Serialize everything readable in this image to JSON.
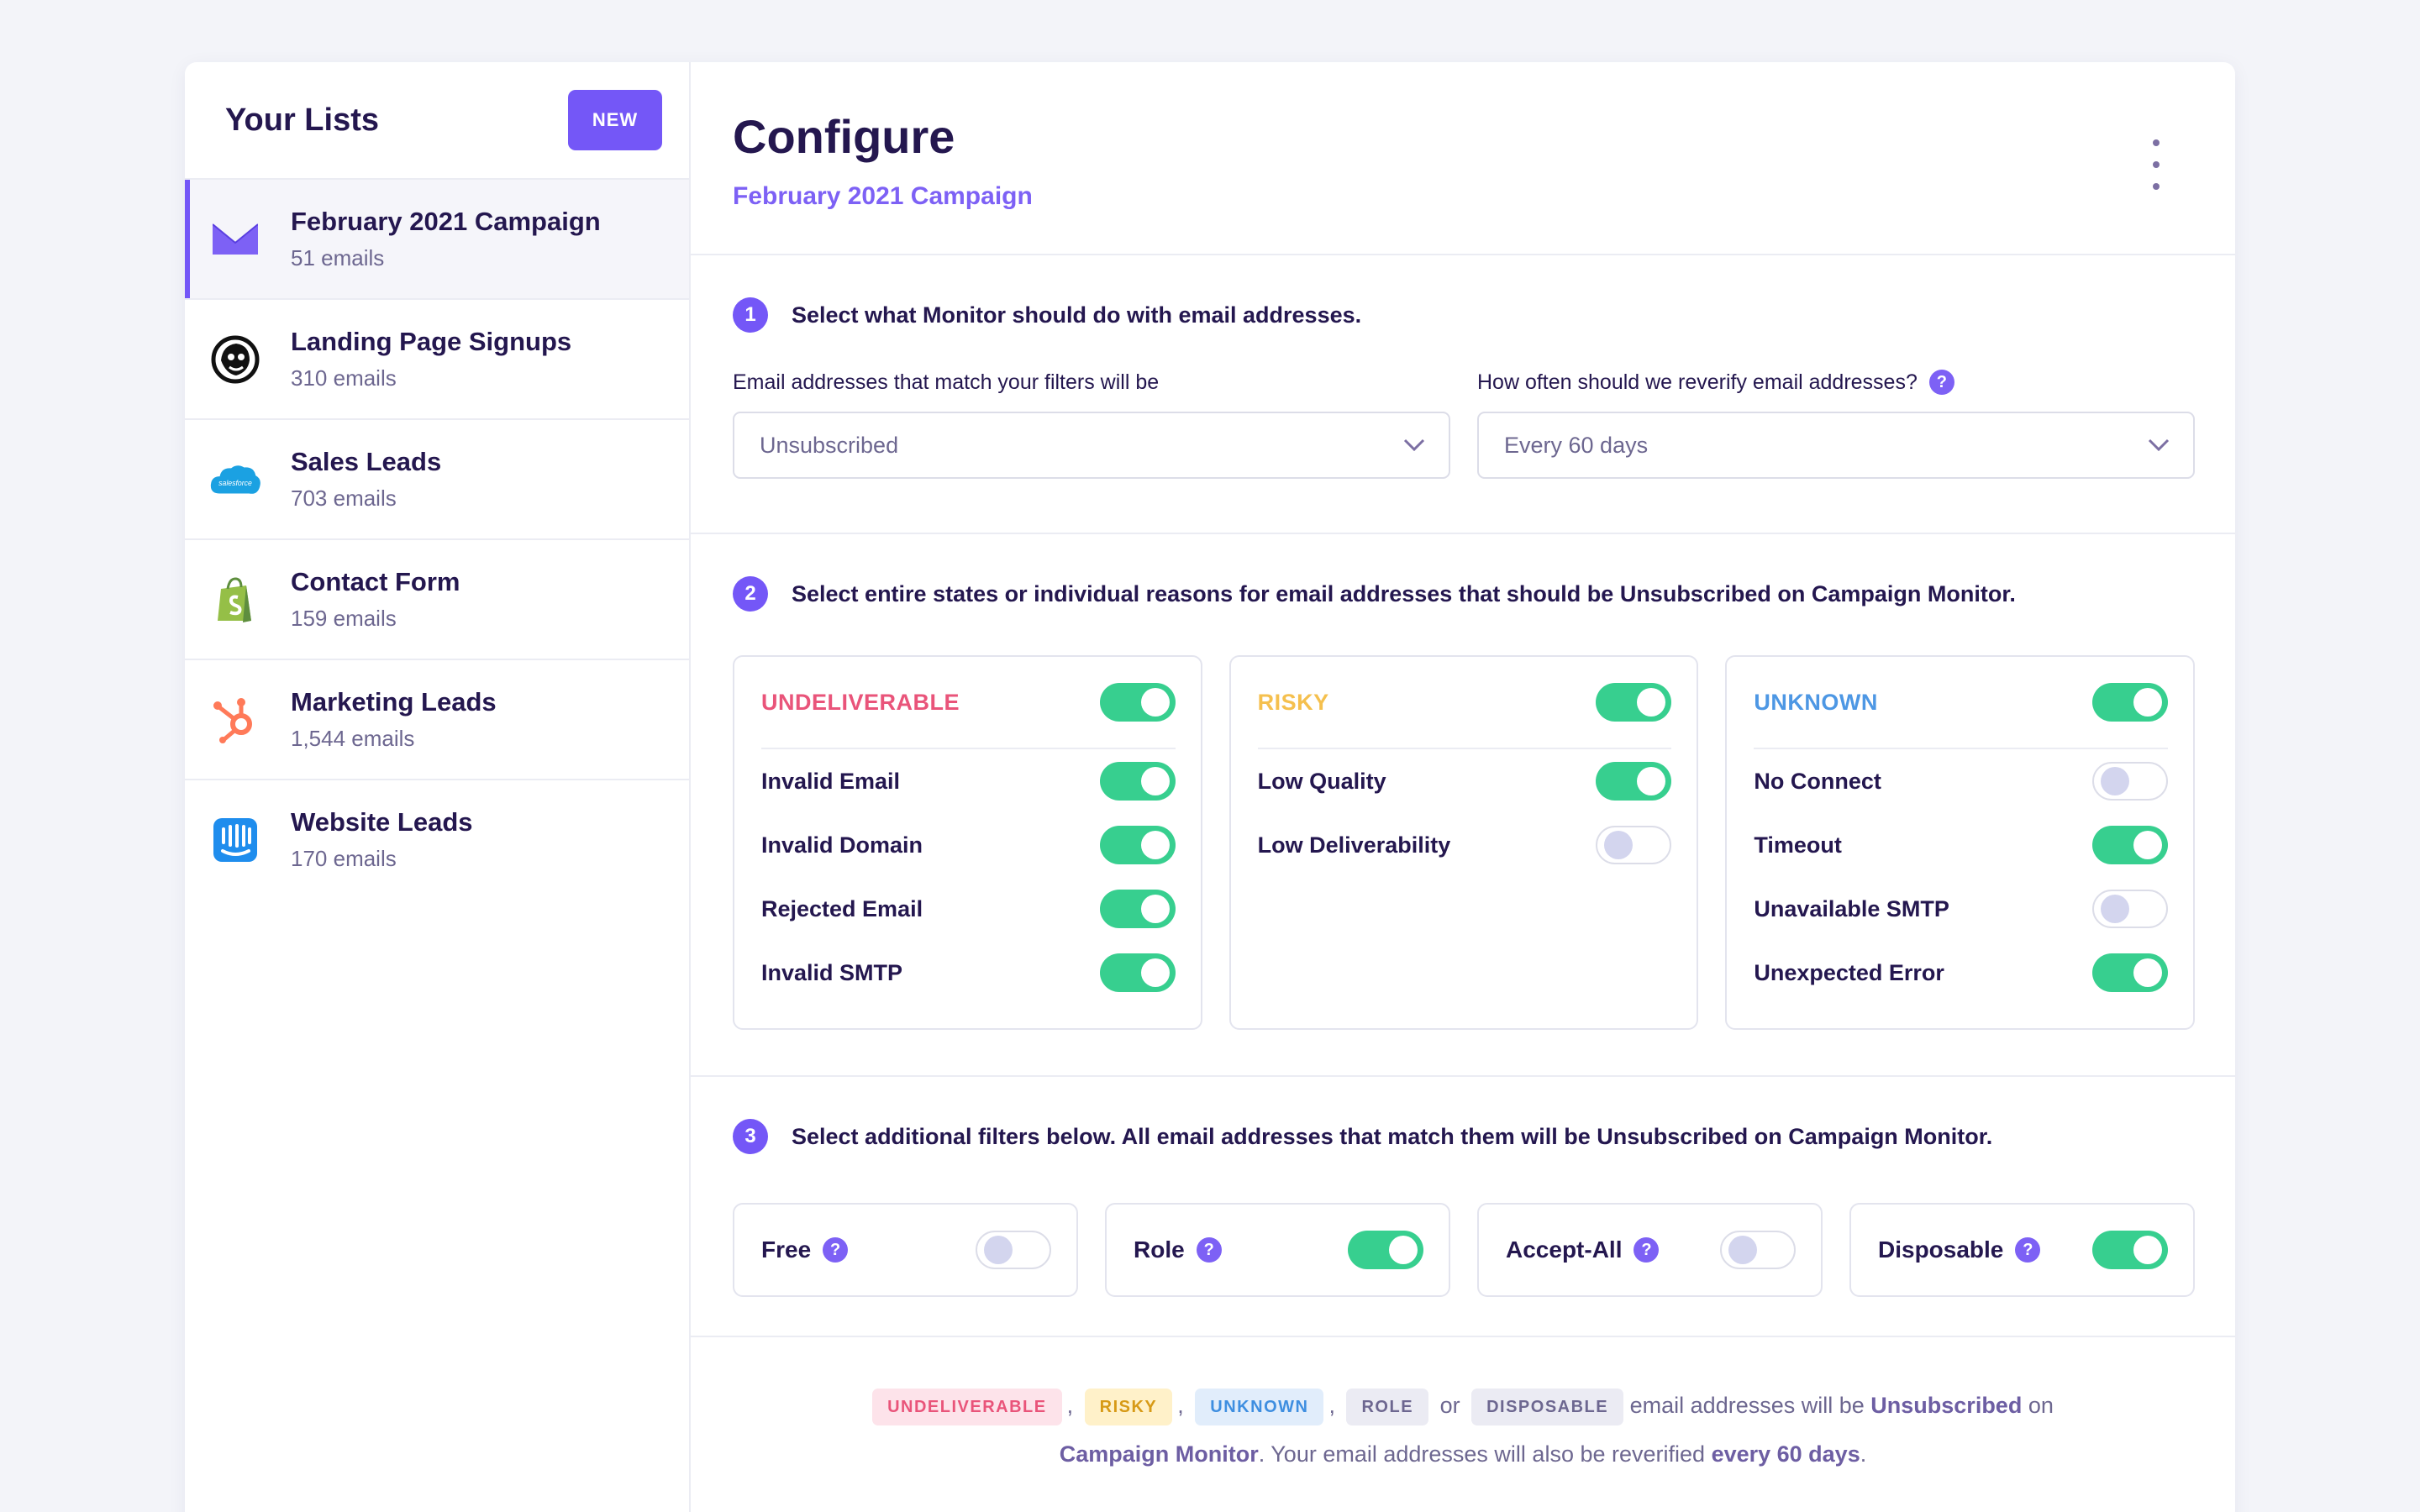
{
  "sidebar": {
    "title": "Your Lists",
    "new_label": "NEW",
    "items": [
      {
        "name": "February 2021 Campaign",
        "count": "51 emails",
        "icon": "campaign-monitor-icon",
        "active": true
      },
      {
        "name": "Landing Page Signups",
        "count": "310 emails",
        "icon": "mailchimp-icon"
      },
      {
        "name": "Sales Leads",
        "count": "703 emails",
        "icon": "salesforce-icon",
        "icon_text": "salesforce"
      },
      {
        "name": "Contact Form",
        "count": "159 emails",
        "icon": "shopify-icon"
      },
      {
        "name": "Marketing Leads",
        "count": "1,544 emails",
        "icon": "hubspot-icon"
      },
      {
        "name": "Website Leads",
        "count": "170 emails",
        "icon": "intercom-icon"
      }
    ]
  },
  "header": {
    "title": "Configure",
    "subtitle": "February 2021 Campaign"
  },
  "step1": {
    "number": "1",
    "text": "Select what Monitor should do with email addresses.",
    "action_label": "Email addresses that match your filters will be",
    "action_value": "Unsubscribed",
    "reverify_label": "How often should we reverify email addresses?",
    "reverify_value": "Every 60 days",
    "help_glyph": "?"
  },
  "step2": {
    "number": "2",
    "text": "Select entire states or individual reasons for email addresses that should be Unsubscribed on Campaign Monitor.",
    "states": [
      {
        "title": "UNDELIVERABLE",
        "color": "#e9547a",
        "on": true,
        "reasons": [
          {
            "label": "Invalid Email",
            "on": true
          },
          {
            "label": "Invalid Domain",
            "on": true
          },
          {
            "label": "Rejected Email",
            "on": true
          },
          {
            "label": "Invalid SMTP",
            "on": true
          }
        ]
      },
      {
        "title": "RISKY",
        "color": "#f5c04e",
        "on": true,
        "reasons": [
          {
            "label": "Low Quality",
            "on": true
          },
          {
            "label": "Low Deliverability",
            "on": false
          }
        ]
      },
      {
        "title": "UNKNOWN",
        "color": "#4d97e4",
        "on": true,
        "reasons": [
          {
            "label": "No Connect",
            "on": false
          },
          {
            "label": "Timeout",
            "on": true
          },
          {
            "label": "Unavailable SMTP",
            "on": false
          },
          {
            "label": "Unexpected Error",
            "on": true
          }
        ]
      }
    ]
  },
  "step3": {
    "number": "3",
    "text": "Select additional filters below. All email addresses that match them will be Unsubscribed on Campaign Monitor.",
    "filters": [
      {
        "label": "Free",
        "on": false
      },
      {
        "label": "Role",
        "on": true
      },
      {
        "label": "Accept-All",
        "on": false
      },
      {
        "label": "Disposable",
        "on": true
      }
    ]
  },
  "summary": {
    "tags": [
      "UNDELIVERABLE",
      "RISKY",
      "UNKNOWN",
      "ROLE",
      "DISPOSABLE"
    ],
    "comma": ",",
    "or": "or",
    "text1": "email addresses will be",
    "bold1": "Unsubscribed",
    "text2": "on",
    "bold2": "Campaign Monitor",
    "text3": ". Your email addresses will also be reverified",
    "bold3": "every 60 days",
    "text4": "."
  }
}
